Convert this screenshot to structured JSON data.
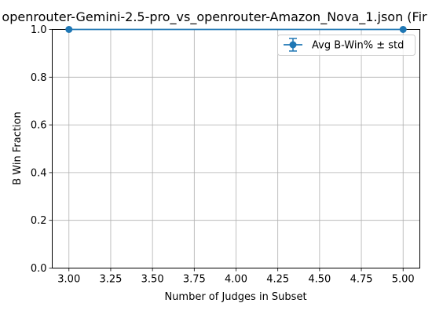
{
  "chart_data": {
    "type": "line",
    "title": "openrouter-Gemini-2.5-pro_vs_openrouter-Amazon_Nova_1.json (Fir",
    "xlabel": "Number of Judges in Subset",
    "ylabel": "B Win Fraction",
    "xlim": [
      2.9,
      5.1
    ],
    "ylim": [
      0.0,
      1.0
    ],
    "x_ticks": [
      "3.00",
      "3.25",
      "3.50",
      "3.75",
      "4.00",
      "4.25",
      "4.50",
      "4.75",
      "5.00"
    ],
    "y_ticks": [
      "0.0",
      "0.2",
      "0.4",
      "0.6",
      "0.8",
      "1.0"
    ],
    "grid": true,
    "legend_position": "top-right",
    "series": [
      {
        "name": "Avg B-Win% ± std",
        "color": "#1f77b4",
        "marker": "circle",
        "error_bars": true,
        "x": [
          3,
          5
        ],
        "y": [
          1.0,
          1.0
        ],
        "std": [
          0.0,
          0.0
        ]
      }
    ]
  }
}
